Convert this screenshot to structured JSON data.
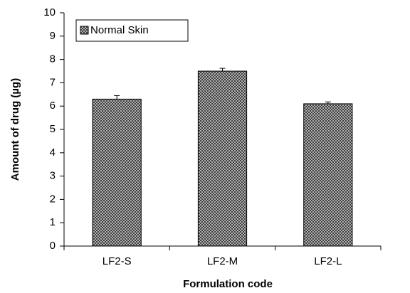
{
  "chart_data": {
    "type": "bar",
    "xlabel": "Formulation code",
    "ylabel": "Amount of drug (µg)",
    "categories": [
      "LF2-S",
      "LF2-M",
      "LF2-L"
    ],
    "series": [
      {
        "name": "Normal Skin",
        "color": "#555555",
        "values": [
          6.3,
          7.5,
          6.1
        ],
        "errors": [
          0.15,
          0.12,
          0.08
        ]
      }
    ],
    "ylim": [
      0,
      10
    ],
    "yticks": [
      0,
      1,
      2,
      3,
      4,
      5,
      6,
      7,
      8,
      9,
      10
    ],
    "legend": "upper left"
  }
}
